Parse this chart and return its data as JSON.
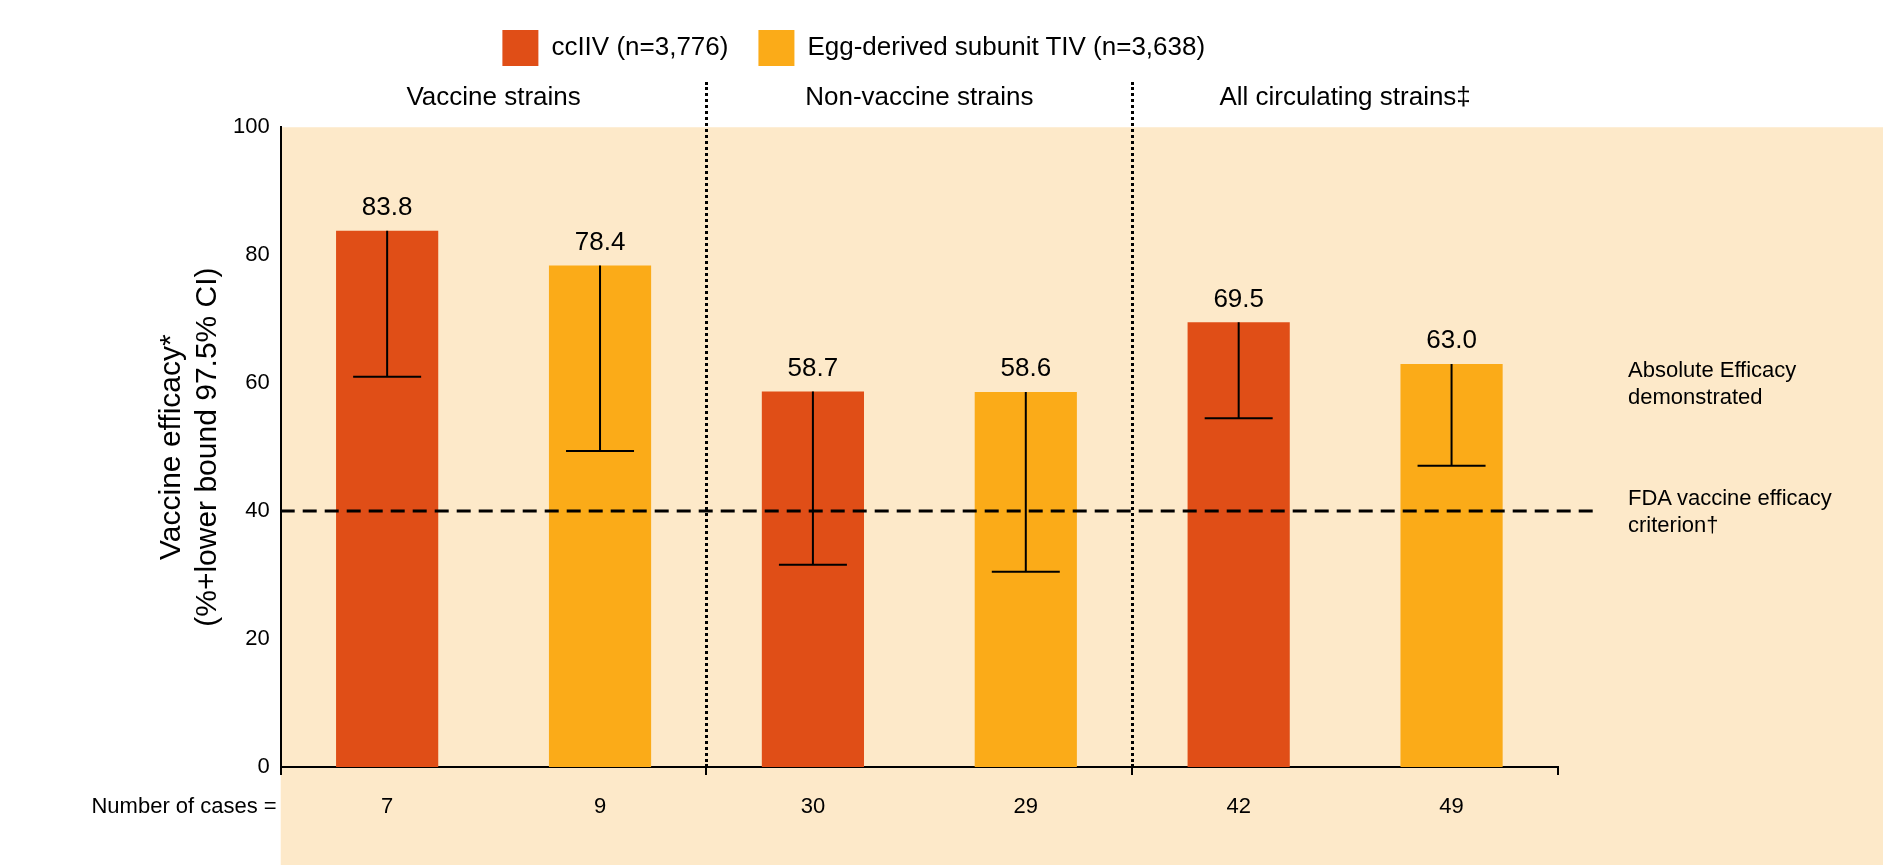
{
  "chart_data": {
    "type": "bar",
    "ylabel": "Vaccine efficacy*\n(%+lower bound 97.5% CI)",
    "categories": [
      "Vaccine strains",
      "Non-vaccine strains",
      "All circulating strains‡"
    ],
    "series": [
      {
        "name": "ccIIV (n=3,776)",
        "color": "#e04e17",
        "values": [
          83.8,
          58.7,
          69.5
        ],
        "value_labels": [
          "83.8",
          "58.7",
          "69.5"
        ],
        "errors": [
          [
            61.0,
            83.8
          ],
          [
            31.6,
            58.7
          ],
          [
            54.5,
            69.5
          ]
        ]
      },
      {
        "name": "Egg-derived subunit TIV (n=3,638)",
        "color": "#fbab18",
        "values": [
          78.4,
          58.6,
          63.0
        ],
        "value_labels": [
          "78.4",
          "58.6",
          "63.0"
        ],
        "errors": [
          [
            49.4,
            78.4
          ],
          [
            30.5,
            58.6
          ],
          [
            47.1,
            63.0
          ]
        ]
      }
    ],
    "ylim": [
      0,
      100
    ],
    "yticks": [
      0,
      20,
      40,
      60,
      80,
      100
    ],
    "grid": false,
    "legend": "top",
    "ref_lines": [
      {
        "axis": "y",
        "value": 40,
        "label": "FDA vaccine efficacy criterion†",
        "line_style": "dashed",
        "color": "#000000"
      }
    ],
    "annotations": [
      "Number of cases =",
      "7",
      "9",
      "30",
      "29",
      "42",
      "49",
      "Absolute Efficacy demonstrated"
    ]
  }
}
